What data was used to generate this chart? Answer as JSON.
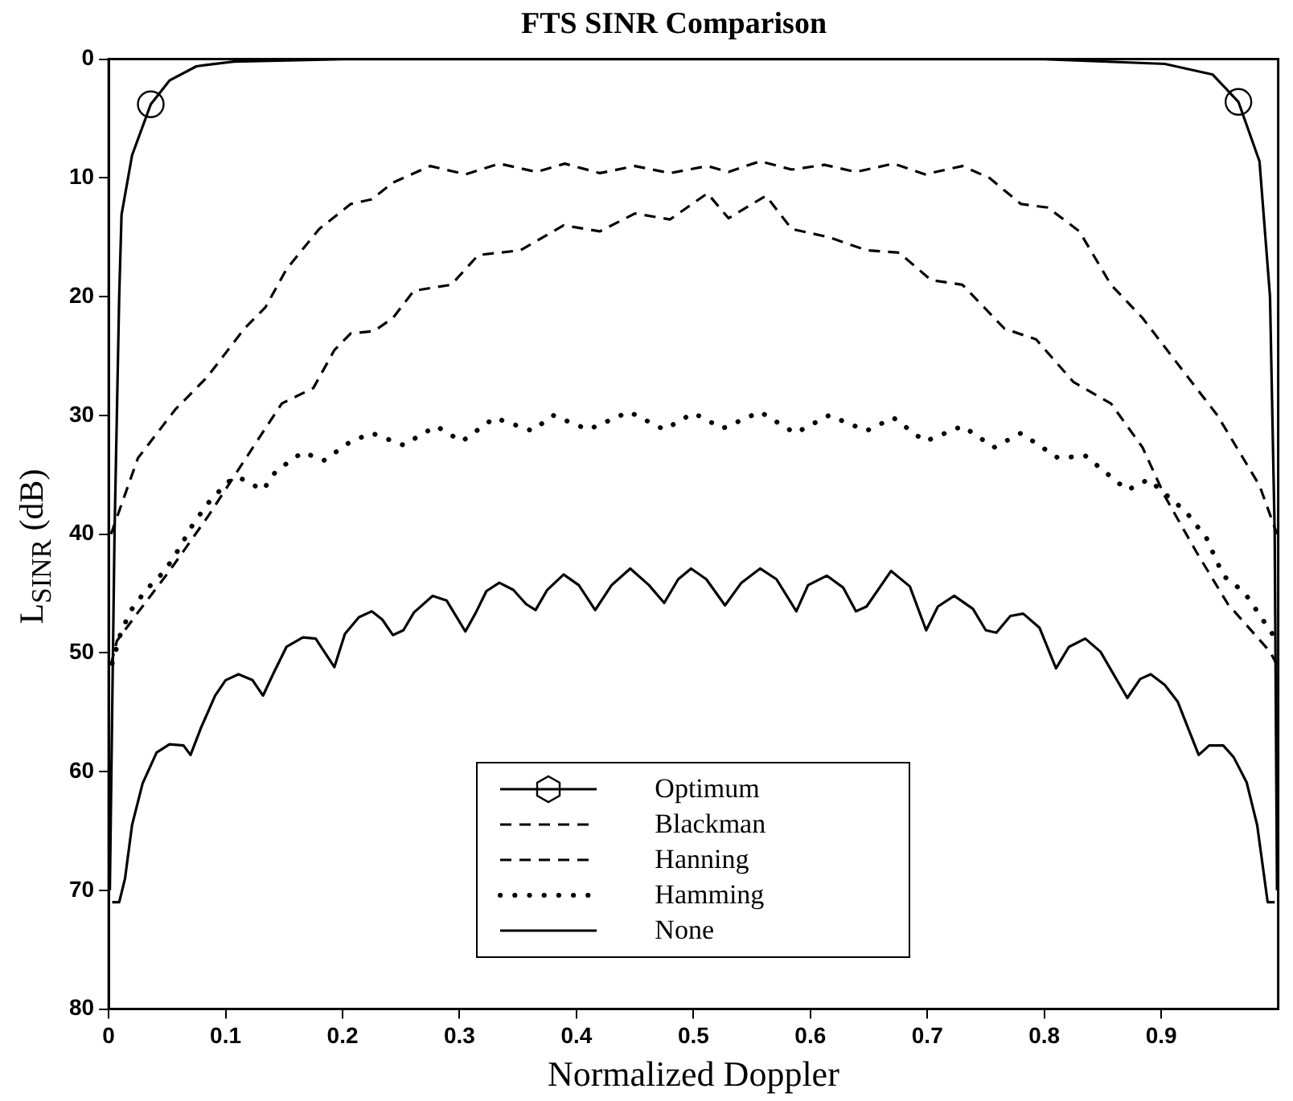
{
  "chart_data": {
    "type": "line",
    "title": "FTS SINR Comparison",
    "xlabel": "Normalized Doppler",
    "ylabel": "L$_{SINR}$ (dB)",
    "xlim": [
      0,
      1
    ],
    "ylim": [
      80,
      0
    ],
    "xticks": [
      0,
      0.1,
      0.2,
      0.3,
      0.4,
      0.5,
      0.6,
      0.7,
      0.8,
      0.9
    ],
    "yticks": [
      0,
      10,
      20,
      30,
      40,
      50,
      60,
      70,
      80
    ],
    "grid": false,
    "legend": "bottom",
    "series": [
      {
        "name": "Optimum",
        "color": "#000000",
        "line_style": "solid",
        "x": [
          0.001,
          0.005,
          0.009,
          0.011,
          0.02,
          0.036,
          0.052,
          0.075,
          0.107,
          0.2,
          0.5,
          0.8,
          0.903,
          0.944,
          0.966,
          0.984,
          0.993,
          0.997,
          0.999
        ],
        "values": [
          70,
          40,
          20,
          13.1,
          8.1,
          3.8,
          1.8,
          0.6,
          0.2,
          0,
          0,
          0,
          0.4,
          1.3,
          3.6,
          8.6,
          20,
          40,
          70
        ]
      },
      {
        "type": "scatter",
        "color": "#000000",
        "marker": "circle",
        "x": [
          0.036,
          0.966
        ],
        "values": [
          3.8,
          3.6
        ]
      },
      {
        "name": "Blackman",
        "color": "#000000",
        "line_style": "dashed",
        "x": [
          0.002,
          0.025,
          0.057,
          0.084,
          0.116,
          0.134,
          0.152,
          0.18,
          0.207,
          0.225,
          0.243,
          0.275,
          0.305,
          0.334,
          0.366,
          0.39,
          0.42,
          0.45,
          0.48,
          0.512,
          0.53,
          0.557,
          0.584,
          0.612,
          0.639,
          0.671,
          0.698,
          0.73,
          0.753,
          0.78,
          0.803,
          0.83,
          0.857,
          0.884,
          0.912,
          0.948,
          0.984,
          0.999
        ],
        "values": [
          40,
          33.6,
          29.5,
          26.8,
          22.7,
          20.9,
          17.7,
          14.3,
          12.2,
          11.8,
          10.4,
          9,
          9.7,
          8.8,
          9.5,
          8.8,
          9.6,
          9,
          9.6,
          9,
          9.5,
          8.6,
          9.3,
          8.9,
          9.5,
          8.8,
          9.7,
          9,
          10,
          12.2,
          12.5,
          14.5,
          19,
          21.8,
          25.4,
          30,
          35.9,
          40
        ]
      },
      {
        "name": "Hanning",
        "color": "#000000",
        "line_style": "dashed",
        "x": [
          0.002,
          0.007,
          0.025,
          0.052,
          0.085,
          0.116,
          0.148,
          0.175,
          0.193,
          0.207,
          0.227,
          0.243,
          0.261,
          0.293,
          0.316,
          0.352,
          0.389,
          0.42,
          0.45,
          0.48,
          0.512,
          0.53,
          0.562,
          0.584,
          0.616,
          0.648,
          0.676,
          0.703,
          0.73,
          0.766,
          0.793,
          0.825,
          0.857,
          0.884,
          0.903,
          0.93,
          0.957,
          0.993,
          0.999
        ],
        "values": [
          51,
          49,
          46.6,
          43.1,
          38.5,
          33.8,
          29,
          27.7,
          24.5,
          23.1,
          22.9,
          21.8,
          19.5,
          19,
          16.5,
          16.1,
          14,
          14.5,
          13,
          13.5,
          11.3,
          13.4,
          11.5,
          14.3,
          15,
          16.1,
          16.3,
          18.6,
          19,
          22.7,
          23.6,
          27.2,
          29,
          32.7,
          36.8,
          41.5,
          45.9,
          49.9,
          51
        ]
      },
      {
        "name": "Hamming",
        "color": "#000000",
        "line_style": "dotted",
        "x": [
          0.003,
          0.011,
          0.02,
          0.032,
          0.048,
          0.061,
          0.07,
          0.084,
          0.102,
          0.111,
          0.132,
          0.143,
          0.166,
          0.184,
          0.207,
          0.225,
          0.252,
          0.28,
          0.302,
          0.33,
          0.362,
          0.38,
          0.41,
          0.445,
          0.475,
          0.5,
          0.525,
          0.557,
          0.587,
          0.616,
          0.648,
          0.671,
          0.698,
          0.73,
          0.757,
          0.78,
          0.812,
          0.835,
          0.871,
          0.889,
          0.921,
          0.939,
          0.953,
          0.971,
          0.982,
          0.999
        ],
        "values": [
          50.9,
          48.1,
          46.3,
          44.7,
          43.1,
          41.1,
          39.5,
          37.5,
          35.6,
          35.2,
          36.3,
          34.7,
          33.1,
          33.8,
          32.2,
          31.5,
          32.5,
          30.9,
          32.2,
          30.2,
          31.3,
          30,
          31.2,
          29.7,
          31.2,
          29.8,
          31.1,
          29.7,
          31.5,
          30,
          31.3,
          30.2,
          32.2,
          30.9,
          32.7,
          31.5,
          33.6,
          33.4,
          36.3,
          35.4,
          38.1,
          40.4,
          43.5,
          44.9,
          46.5,
          49
        ]
      },
      {
        "name": "None",
        "color": "#000000",
        "line_style": "solid",
        "x": [
          0.003,
          0.009,
          0.014,
          0.02,
          0.029,
          0.041,
          0.052,
          0.064,
          0.07,
          0.079,
          0.091,
          0.1,
          0.111,
          0.123,
          0.132,
          0.141,
          0.152,
          0.166,
          0.177,
          0.193,
          0.202,
          0.214,
          0.225,
          0.234,
          0.243,
          0.252,
          0.261,
          0.277,
          0.289,
          0.305,
          0.314,
          0.323,
          0.334,
          0.346,
          0.357,
          0.365,
          0.375,
          0.389,
          0.402,
          0.416,
          0.43,
          0.446,
          0.462,
          0.475,
          0.487,
          0.498,
          0.511,
          0.527,
          0.541,
          0.557,
          0.571,
          0.588,
          0.598,
          0.614,
          0.628,
          0.639,
          0.648,
          0.669,
          0.685,
          0.699,
          0.709,
          0.723,
          0.739,
          0.75,
          0.759,
          0.771,
          0.782,
          0.796,
          0.81,
          0.821,
          0.835,
          0.848,
          0.871,
          0.882,
          0.891,
          0.903,
          0.914,
          0.932,
          0.941,
          0.953,
          0.962,
          0.973,
          0.982,
          0.991,
          0.997
        ],
        "values": [
          71,
          71,
          69,
          64.5,
          61,
          58.4,
          57.7,
          57.8,
          58.6,
          56.3,
          53.6,
          52.3,
          51.8,
          52.3,
          53.6,
          51.7,
          49.5,
          48.7,
          48.8,
          51.2,
          48.4,
          47,
          46.5,
          47.2,
          48.5,
          48.1,
          46.6,
          45.2,
          45.6,
          48.2,
          46.6,
          44.8,
          44.1,
          44.7,
          45.9,
          46.4,
          44.7,
          43.4,
          44.3,
          46.4,
          44.3,
          42.9,
          44.3,
          45.8,
          43.8,
          42.9,
          43.8,
          46,
          44.1,
          42.9,
          43.8,
          46.5,
          44.3,
          43.5,
          44.5,
          46.5,
          46.1,
          43.1,
          44.4,
          48.1,
          46.1,
          45.2,
          46.3,
          48.1,
          48.3,
          46.9,
          46.7,
          47.9,
          51.3,
          49.5,
          48.8,
          49.9,
          53.8,
          52.2,
          51.8,
          52.7,
          54.1,
          58.6,
          57.8,
          57.8,
          58.8,
          60.9,
          64.5,
          71,
          71
        ]
      }
    ]
  }
}
